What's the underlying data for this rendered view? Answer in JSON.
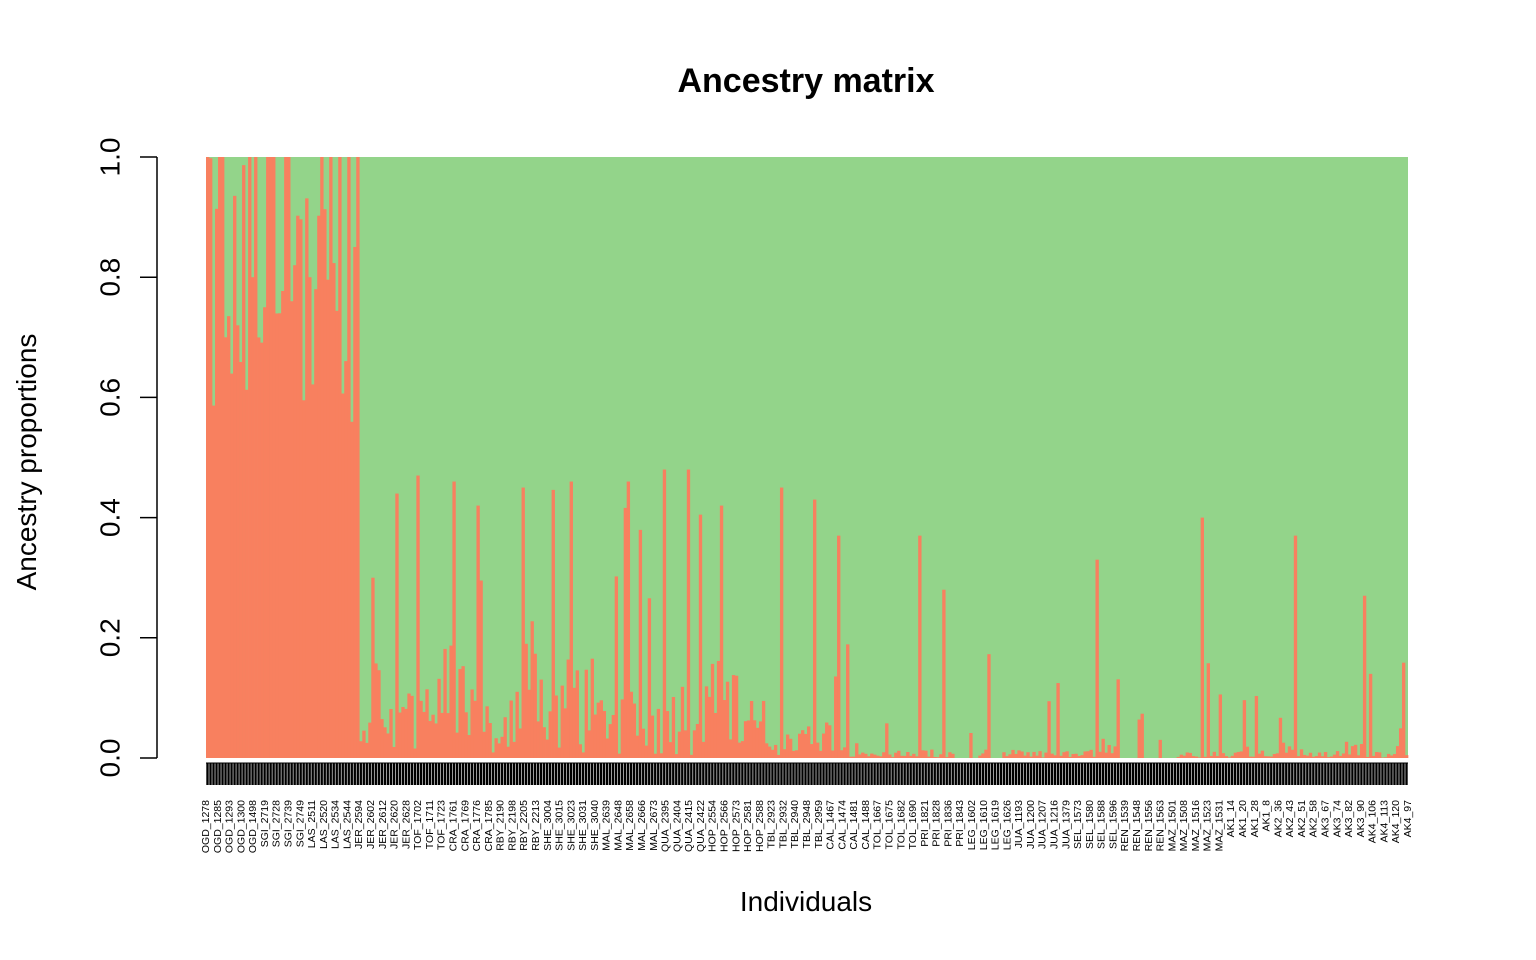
{
  "chart_data": {
    "type": "bar",
    "stacked": true,
    "title": "Ancestry matrix",
    "xlabel": "Individuals",
    "ylabel": "Ancestry proportions",
    "ylim": [
      0,
      1
    ],
    "y_ticks": [
      "0.0",
      "0.2",
      "0.4",
      "0.6",
      "0.8",
      "1.0"
    ],
    "grid": false,
    "legend": "none",
    "colors": {
      "ancestry_1": "#f8805f",
      "ancestry_2": "#93d48a",
      "axis": "#000000"
    },
    "individual_labels": [
      "OGD_1278",
      "OGD_1285",
      "OGD_1293",
      "OGD_1300",
      "OGD_1498",
      "SGI_2719",
      "SGI_2728",
      "SGI_2739",
      "SGI_2749",
      "LAS_2511",
      "LAS_2520",
      "LAS_2534",
      "LAS_2544",
      "JER_2594",
      "JER_2602",
      "JER_2612",
      "JER_2620",
      "JER_2628",
      "TOF_1702",
      "TOF_1711",
      "TOF_1723",
      "CRA_1761",
      "CRA_1769",
      "CRA_1776",
      "CRA_1785",
      "RBY_2190",
      "RBY_2198",
      "RBY_2205",
      "RBY_2213",
      "SHE_3004",
      "SHE_3015",
      "SHE_3023",
      "SHE_3031",
      "SHE_3040",
      "MAL_2639",
      "MAL_2648",
      "MAL_2658",
      "MAL_2666",
      "MAL_2673",
      "QUA_2395",
      "QUA_2404",
      "QUA_2415",
      "QUA_2422",
      "HOP_2554",
      "HOP_2566",
      "HOP_2573",
      "HOP_2581",
      "HOP_2588",
      "TBL_2923",
      "TBL_2932",
      "TBL_2940",
      "TBL_2948",
      "TBL_2959",
      "CAL_1467",
      "CAL_1474",
      "CAL_1481",
      "CAL_1488",
      "TOL_1667",
      "TOL_1675",
      "TOL_1682",
      "TOL_1690",
      "PRI_1821",
      "PRI_1828",
      "PRI_1836",
      "PRI_1843",
      "LEG_1602",
      "LEG_1610",
      "LEG_1619",
      "LEG_1626",
      "JUA_1193",
      "JUA_1200",
      "JUA_1207",
      "JUA_1216",
      "JUA_1379",
      "SEL_1573",
      "SEL_1580",
      "SEL_1588",
      "SEL_1596",
      "REN_1539",
      "REN_1548",
      "REN_1556",
      "REN_1563",
      "MAZ_1501",
      "MAZ_1508",
      "MAZ_1516",
      "MAZ_1523",
      "MAZ_1531",
      "AK1_14",
      "AK1_20",
      "AK1_28",
      "AK1_8",
      "AK2_36",
      "AK2_43",
      "AK2_51",
      "AK2_58",
      "AK3_67",
      "AK3_74",
      "AK3_82",
      "AK3_90",
      "AK4_106",
      "AK4_113",
      "AK4_120",
      "AK4_97"
    ],
    "group_ancestry_1_levels": [
      {
        "group": "OGD_1278",
        "value": 0.8
      },
      {
        "group": "OGD_1285",
        "value": 0.7
      },
      {
        "group": "OGD_1293",
        "value": 0.72
      },
      {
        "group": "OGD_1300",
        "value": 0.8
      },
      {
        "group": "OGD_1498",
        "value": 0.75
      },
      {
        "group": "SGI_2719",
        "value": 0.78
      },
      {
        "group": "SGI_2728",
        "value": 0.74
      },
      {
        "group": "SGI_2739",
        "value": 0.76
      },
      {
        "group": "SGI_2749",
        "value": 0.8
      },
      {
        "group": "LAS_2511",
        "value": 0.78
      },
      {
        "group": "LAS_2520",
        "value": 0.82
      },
      {
        "group": "LAS_2534",
        "value": 0.85
      },
      {
        "group": "LAS_2544",
        "value": 0.86
      },
      {
        "group": "JER_2594",
        "value": 0.12
      },
      {
        "group": "JER_2602",
        "value": 0.14
      },
      {
        "group": "JER_2612",
        "value": 0.13
      },
      {
        "group": "JER_2620",
        "value": 0.15
      },
      {
        "group": "JER_2628",
        "value": 0.1
      },
      {
        "group": "TOF_1702",
        "value": 0.12
      },
      {
        "group": "TOF_1711",
        "value": 0.1
      },
      {
        "group": "TOF_1723",
        "value": 0.11
      },
      {
        "group": "CRA_1761",
        "value": 0.11
      },
      {
        "group": "CRA_1769",
        "value": 0.1
      },
      {
        "group": "CRA_1776",
        "value": 0.08
      },
      {
        "group": "CRA_1785",
        "value": 0.07
      },
      {
        "group": "RBY_2190",
        "value": 0.06
      },
      {
        "group": "RBY_2198",
        "value": 0.08
      },
      {
        "group": "RBY_2205",
        "value": 0.2
      },
      {
        "group": "RBY_2213",
        "value": 0.18
      },
      {
        "group": "SHE_3004",
        "value": 0.09
      },
      {
        "group": "SHE_3015",
        "value": 0.12
      },
      {
        "group": "SHE_3023",
        "value": 0.14
      },
      {
        "group": "SHE_3031",
        "value": 0.12
      },
      {
        "group": "SHE_3040",
        "value": 0.08
      },
      {
        "group": "MAL_2639",
        "value": 0.09
      },
      {
        "group": "MAL_2648",
        "value": 0.07
      },
      {
        "group": "MAL_2658",
        "value": 0.08
      },
      {
        "group": "MAL_2666",
        "value": 0.07
      },
      {
        "group": "MAL_2673",
        "value": 0.08
      },
      {
        "group": "QUA_2395",
        "value": 0.1
      },
      {
        "group": "QUA_2404",
        "value": 0.1
      },
      {
        "group": "QUA_2415",
        "value": 0.08
      },
      {
        "group": "QUA_2422",
        "value": 0.09
      },
      {
        "group": "HOP_2554",
        "value": 0.12
      },
      {
        "group": "HOP_2566",
        "value": 0.13
      },
      {
        "group": "HOP_2573",
        "value": 0.11
      },
      {
        "group": "HOP_2581",
        "value": 0.08
      },
      {
        "group": "HOP_2588",
        "value": 0.07
      },
      {
        "group": "TBL_2923",
        "value": 0.06
      },
      {
        "group": "TBL_2932",
        "value": 0.07
      },
      {
        "group": "TBL_2940",
        "value": 0.06
      },
      {
        "group": "TBL_2948",
        "value": 0.04
      },
      {
        "group": "TBL_2959",
        "value": 0.05
      },
      {
        "group": "CAL_1467",
        "value": 0.05
      },
      {
        "group": "CAL_1474",
        "value": 0.02
      },
      {
        "group": "CAL_1481",
        "value": 0.01
      },
      {
        "group": "CAL_1488",
        "value": 0.01
      },
      {
        "group": "TOL_1667",
        "value": 0.01
      },
      {
        "group": "TOL_1675",
        "value": 0.01
      },
      {
        "group": "TOL_1682",
        "value": 0.01
      },
      {
        "group": "TOL_1690",
        "value": 0.01
      },
      {
        "group": "PRI_1821",
        "value": 0.01
      },
      {
        "group": "PRI_1828",
        "value": 0.01
      },
      {
        "group": "PRI_1836",
        "value": 0.01
      },
      {
        "group": "PRI_1843",
        "value": 0.0
      },
      {
        "group": "LEG_1602",
        "value": 0.0
      },
      {
        "group": "LEG_1610",
        "value": 0.01
      },
      {
        "group": "LEG_1619",
        "value": 0.0
      },
      {
        "group": "LEG_1626",
        "value": 0.01
      },
      {
        "group": "JUA_1193",
        "value": 0.01
      },
      {
        "group": "JUA_1200",
        "value": 0.01
      },
      {
        "group": "JUA_1207",
        "value": 0.01
      },
      {
        "group": "JUA_1216",
        "value": 0.01
      },
      {
        "group": "JUA_1379",
        "value": 0.01
      },
      {
        "group": "SEL_1573",
        "value": 0.01
      },
      {
        "group": "SEL_1580",
        "value": 0.01
      },
      {
        "group": "SEL_1588",
        "value": 0.03
      },
      {
        "group": "SEL_1596",
        "value": 0.02
      },
      {
        "group": "REN_1539",
        "value": 0.0
      },
      {
        "group": "REN_1548",
        "value": 0.0
      },
      {
        "group": "REN_1556",
        "value": 0.0
      },
      {
        "group": "REN_1563",
        "value": 0.0
      },
      {
        "group": "MAZ_1501",
        "value": 0.0
      },
      {
        "group": "MAZ_1508",
        "value": 0.01
      },
      {
        "group": "MAZ_1516",
        "value": 0.01
      },
      {
        "group": "MAZ_1523",
        "value": 0.03
      },
      {
        "group": "MAZ_1531",
        "value": 0.01
      },
      {
        "group": "AK1_14",
        "value": 0.01
      },
      {
        "group": "AK1_20",
        "value": 0.01
      },
      {
        "group": "AK1_28",
        "value": 0.01
      },
      {
        "group": "AK1_8",
        "value": 0.01
      },
      {
        "group": "AK2_36",
        "value": 0.02
      },
      {
        "group": "AK2_43",
        "value": 0.02
      },
      {
        "group": "AK2_51",
        "value": 0.02
      },
      {
        "group": "AK2_58",
        "value": 0.01
      },
      {
        "group": "AK3_67",
        "value": 0.01
      },
      {
        "group": "AK3_74",
        "value": 0.01
      },
      {
        "group": "AK3_82",
        "value": 0.02
      },
      {
        "group": "AK3_90",
        "value": 0.02
      },
      {
        "group": "AK4_106",
        "value": 0.01
      },
      {
        "group": "AK4_113",
        "value": 0.01
      },
      {
        "group": "AK4_120",
        "value": 0.02
      },
      {
        "group": "AK4_97",
        "value": 0.01
      }
    ],
    "notable_peaks": [
      {
        "near": "OGD_1278",
        "value": 0.94
      },
      {
        "near": "JER_2602",
        "value": 0.3
      },
      {
        "near": "JER_2620",
        "value": 0.44
      },
      {
        "near": "TOF_1702",
        "value": 0.47
      },
      {
        "near": "CRA_1761",
        "value": 0.46
      },
      {
        "near": "CRA_1776",
        "value": 0.42
      },
      {
        "near": "RBY_2205",
        "value": 0.45
      },
      {
        "near": "SHE_3023",
        "value": 0.46
      },
      {
        "near": "MAL_2658",
        "value": 0.46
      },
      {
        "near": "QUA_2395",
        "value": 0.48
      },
      {
        "near": "QUA_2415",
        "value": 0.48
      },
      {
        "near": "HOP_2566",
        "value": 0.42
      },
      {
        "near": "TBL_2932",
        "value": 0.45
      },
      {
        "near": "TBL_2959",
        "value": 0.43
      },
      {
        "near": "CAL_1474",
        "value": 0.37
      },
      {
        "near": "PRI_1821",
        "value": 0.37
      },
      {
        "near": "PRI_1836",
        "value": 0.28
      },
      {
        "near": "SEL_1588",
        "value": 0.33
      },
      {
        "near": "MAZ_1523",
        "value": 0.4
      },
      {
        "near": "AK2_51",
        "value": 0.37
      },
      {
        "near": "AK4_106",
        "value": 0.27
      }
    ],
    "n_individuals": 400
  }
}
